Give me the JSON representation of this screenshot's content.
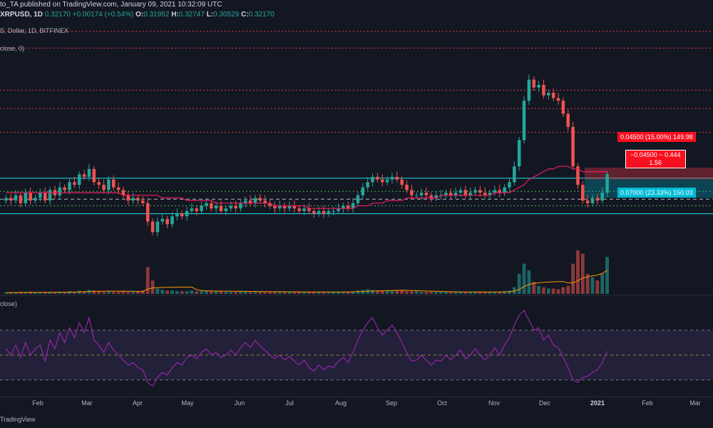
{
  "header": {
    "line1": "to_TA published on TradingView.com, January 09, 2021 10:32:09 UTC",
    "symbol": "XRPUSD, 1D",
    "price": "0.32170",
    "change": "+0.00174 (+0.54%)",
    "o_label": "O:",
    "o_value": "0.31952",
    "h_label": "H:",
    "h_value": "0.32747",
    "l_label": "L:",
    "l_value": "0.30529",
    "c_label": "C:",
    "c_value": "0.32170",
    "line3": "S. Dollar, 1D, BITFINEX"
  },
  "indicators": {
    "ma_label": "close, 0)",
    "rsi_label": "close)"
  },
  "position": {
    "target_label": "0.04500 (15.00%) 149.98",
    "ratio_line1": "−0.04500 ~ 0.444",
    "ratio_line2": "1.56",
    "stop_label": "0.07000 (23.33%) 150.03",
    "entry": 0.3,
    "target": 0.345,
    "stop": 0.23
  },
  "footer": "TradingView",
  "chart_data": {
    "type": "candlestick",
    "x_ticks": [
      "Feb",
      "Mar",
      "Apr",
      "May",
      "Jun",
      "Jul",
      "Aug",
      "Sep",
      "Oct",
      "Nov",
      "Dec",
      "2021",
      "Feb",
      "Mar"
    ],
    "x_ticks_bold": [
      "2021"
    ],
    "price_range": [
      0.12,
      0.82
    ],
    "horizontal_levels": {
      "red_dotted": [
        0.8,
        0.64,
        0.57,
        0.48
      ],
      "cyan_solid": [
        0.305,
        0.17
      ],
      "green_dotted": [
        0.255,
        0.2
      ],
      "white_dashed": [
        0.225
      ]
    },
    "closes": [
      0.23,
      0.22,
      0.24,
      0.21,
      0.25,
      0.22,
      0.23,
      0.25,
      0.22,
      0.26,
      0.24,
      0.27,
      0.26,
      0.29,
      0.28,
      0.32,
      0.31,
      0.34,
      0.29,
      0.28,
      0.26,
      0.3,
      0.27,
      0.26,
      0.24,
      0.22,
      0.23,
      0.22,
      0.21,
      0.14,
      0.1,
      0.14,
      0.15,
      0.13,
      0.16,
      0.17,
      0.16,
      0.18,
      0.19,
      0.18,
      0.2,
      0.21,
      0.19,
      0.2,
      0.18,
      0.19,
      0.2,
      0.19,
      0.21,
      0.22,
      0.21,
      0.23,
      0.22,
      0.21,
      0.2,
      0.19,
      0.2,
      0.19,
      0.2,
      0.19,
      0.18,
      0.19,
      0.18,
      0.17,
      0.18,
      0.17,
      0.18,
      0.18,
      0.19,
      0.2,
      0.19,
      0.21,
      0.24,
      0.27,
      0.29,
      0.31,
      0.3,
      0.29,
      0.3,
      0.31,
      0.3,
      0.28,
      0.26,
      0.24,
      0.24,
      0.25,
      0.24,
      0.23,
      0.24,
      0.24,
      0.25,
      0.24,
      0.25,
      0.26,
      0.24,
      0.25,
      0.26,
      0.25,
      0.24,
      0.25,
      0.26,
      0.25,
      0.27,
      0.29,
      0.35,
      0.45,
      0.6,
      0.68,
      0.65,
      0.66,
      0.62,
      0.63,
      0.61,
      0.6,
      0.55,
      0.5,
      0.35,
      0.28,
      0.22,
      0.21,
      0.23,
      0.22,
      0.25,
      0.32
    ],
    "volume_range": [
      0,
      1
    ],
    "volumes": [
      0.02,
      0.02,
      0.02,
      0.03,
      0.02,
      0.03,
      0.02,
      0.02,
      0.03,
      0.03,
      0.02,
      0.03,
      0.03,
      0.04,
      0.03,
      0.05,
      0.04,
      0.06,
      0.05,
      0.04,
      0.03,
      0.04,
      0.03,
      0.03,
      0.04,
      0.03,
      0.03,
      0.04,
      0.05,
      0.4,
      0.2,
      0.08,
      0.06,
      0.05,
      0.05,
      0.04,
      0.04,
      0.04,
      0.05,
      0.04,
      0.04,
      0.05,
      0.04,
      0.04,
      0.04,
      0.03,
      0.03,
      0.03,
      0.04,
      0.04,
      0.03,
      0.04,
      0.03,
      0.03,
      0.03,
      0.03,
      0.03,
      0.03,
      0.03,
      0.03,
      0.03,
      0.03,
      0.03,
      0.03,
      0.03,
      0.03,
      0.03,
      0.03,
      0.03,
      0.03,
      0.03,
      0.04,
      0.05,
      0.06,
      0.07,
      0.06,
      0.05,
      0.05,
      0.05,
      0.05,
      0.05,
      0.05,
      0.04,
      0.04,
      0.04,
      0.03,
      0.03,
      0.03,
      0.03,
      0.03,
      0.03,
      0.03,
      0.03,
      0.03,
      0.03,
      0.03,
      0.03,
      0.03,
      0.03,
      0.03,
      0.03,
      0.03,
      0.04,
      0.05,
      0.1,
      0.3,
      0.45,
      0.35,
      0.18,
      0.12,
      0.1,
      0.08,
      0.08,
      0.07,
      0.1,
      0.12,
      0.45,
      0.65,
      0.6,
      0.3,
      0.25,
      0.2,
      0.3,
      0.55
    ],
    "rsi_range": [
      20,
      90
    ],
    "rsi_levels": [
      70,
      50,
      30
    ],
    "rsi": [
      55,
      50,
      58,
      48,
      60,
      50,
      55,
      58,
      45,
      62,
      55,
      68,
      60,
      72,
      64,
      76,
      68,
      80,
      62,
      58,
      52,
      60,
      54,
      50,
      46,
      42,
      44,
      40,
      38,
      28,
      25,
      32,
      36,
      34,
      40,
      44,
      42,
      48,
      50,
      47,
      52,
      55,
      50,
      52,
      48,
      50,
      54,
      50,
      56,
      60,
      56,
      62,
      57,
      54,
      50,
      47,
      50,
      46,
      49,
      45,
      42,
      46,
      40,
      37,
      42,
      38,
      41,
      40,
      45,
      48,
      44,
      52,
      62,
      70,
      76,
      80,
      72,
      66,
      70,
      74,
      68,
      60,
      52,
      45,
      46,
      50,
      46,
      42,
      46,
      45,
      50,
      46,
      50,
      54,
      47,
      50,
      55,
      50,
      46,
      50,
      56,
      50,
      58,
      64,
      74,
      82,
      86,
      78,
      70,
      72,
      62,
      66,
      58,
      56,
      48,
      40,
      30,
      28,
      32,
      33,
      36,
      38,
      44,
      53
    ],
    "ma": [
      0.25,
      0.25,
      0.25,
      0.25,
      0.25,
      0.25,
      0.25,
      0.25,
      0.25,
      0.25,
      0.25,
      0.25,
      0.25,
      0.25,
      0.25,
      0.25,
      0.25,
      0.25,
      0.25,
      0.25,
      0.25,
      0.25,
      0.25,
      0.25,
      0.24,
      0.24,
      0.24,
      0.24,
      0.24,
      0.24,
      0.24,
      0.24,
      0.23,
      0.23,
      0.23,
      0.23,
      0.23,
      0.22,
      0.22,
      0.22,
      0.22,
      0.22,
      0.22,
      0.21,
      0.21,
      0.21,
      0.21,
      0.21,
      0.21,
      0.21,
      0.21,
      0.21,
      0.21,
      0.21,
      0.21,
      0.2,
      0.2,
      0.2,
      0.2,
      0.2,
      0.2,
      0.2,
      0.19,
      0.19,
      0.19,
      0.19,
      0.19,
      0.19,
      0.19,
      0.19,
      0.19,
      0.19,
      0.2,
      0.2,
      0.2,
      0.21,
      0.21,
      0.21,
      0.22,
      0.22,
      0.22,
      0.22,
      0.23,
      0.23,
      0.23,
      0.23,
      0.23,
      0.23,
      0.23,
      0.24,
      0.24,
      0.24,
      0.24,
      0.24,
      0.24,
      0.24,
      0.24,
      0.24,
      0.24,
      0.24,
      0.25,
      0.25,
      0.25,
      0.25,
      0.26,
      0.27,
      0.28,
      0.3,
      0.31,
      0.32,
      0.33,
      0.34,
      0.34,
      0.35,
      0.35,
      0.35,
      0.34,
      0.34,
      0.33,
      0.33,
      0.33,
      0.33,
      0.33,
      0.33
    ]
  }
}
